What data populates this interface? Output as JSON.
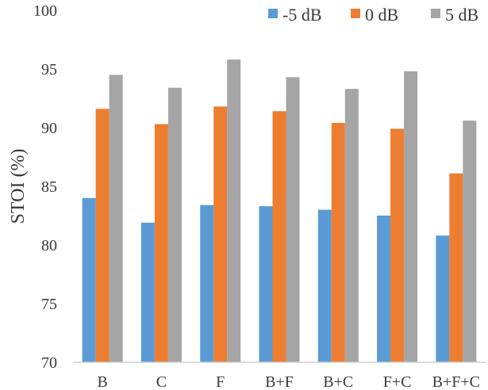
{
  "chart_data": {
    "type": "bar",
    "title": "",
    "xlabel": "",
    "ylabel": "STOI (%)",
    "ylim": [
      70,
      100
    ],
    "yticks": [
      70,
      75,
      80,
      85,
      90,
      95,
      100
    ],
    "grid": false,
    "legend_position": "top-right",
    "categories": [
      "B",
      "C",
      "F",
      "B+F",
      "B+C",
      "F+C",
      "B+F+C"
    ],
    "series": [
      {
        "name": "-5 dB",
        "color": "#5b9bd5",
        "values": [
          84.0,
          81.9,
          83.4,
          83.3,
          83.0,
          82.5,
          80.8
        ]
      },
      {
        "name": "0 dB",
        "color": "#ed7d31",
        "values": [
          91.6,
          90.3,
          91.8,
          91.4,
          90.4,
          89.9,
          86.1
        ]
      },
      {
        "name": "5 dB",
        "color": "#a5a5a5",
        "values": [
          94.5,
          93.4,
          95.8,
          94.3,
          93.3,
          94.8,
          90.6
        ]
      }
    ]
  }
}
